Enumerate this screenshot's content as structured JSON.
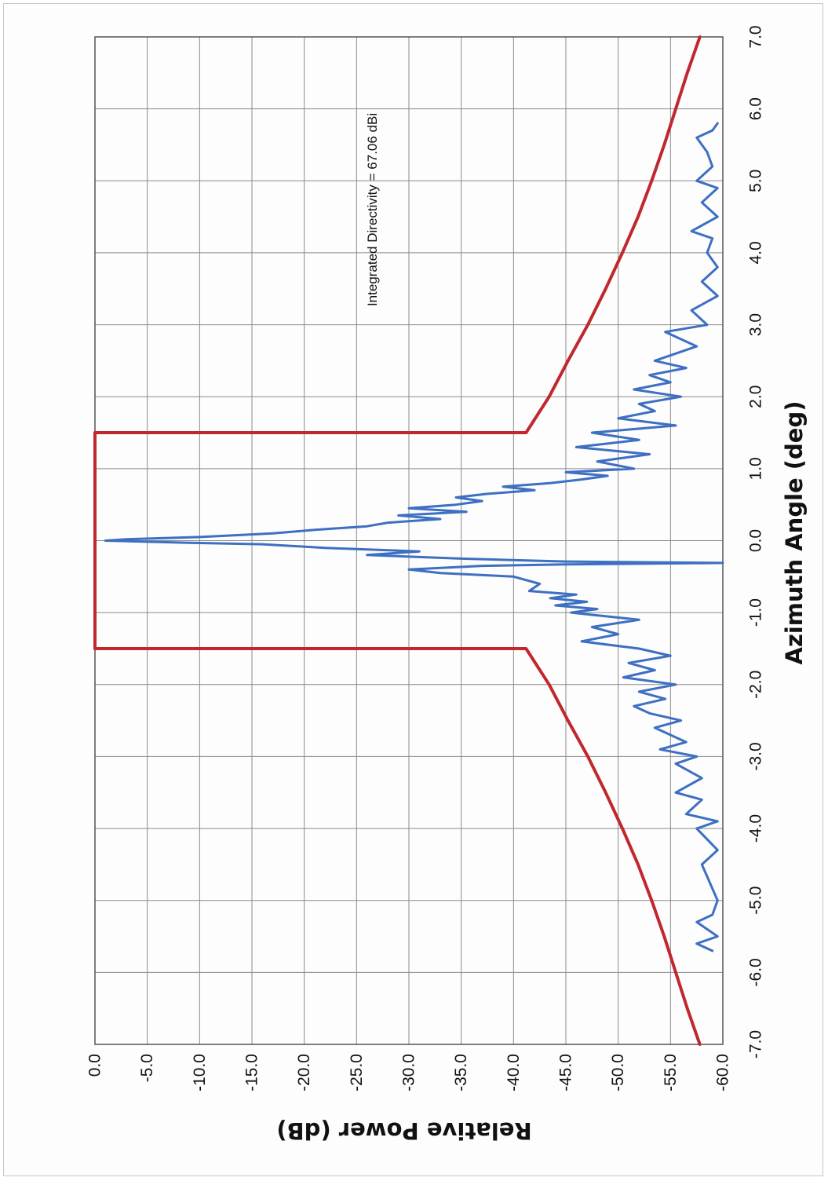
{
  "chart_data": {
    "type": "line",
    "title": "",
    "xlabel": "Azimuth Angle (deg)",
    "ylabel": "Relative Power (dB)",
    "xlim": [
      -7.0,
      7.0
    ],
    "ylim": [
      -60.0,
      0.0
    ],
    "x_ticks": [
      "-7.0",
      "-6.0",
      "-5.0",
      "-4.0",
      "-3.0",
      "-2.0",
      "-1.0",
      "0.0",
      "1.0",
      "2.0",
      "3.0",
      "4.0",
      "5.0",
      "6.0",
      "7.0"
    ],
    "y_ticks": [
      "0.0",
      "-5.0",
      "-10.0",
      "-15.0",
      "-20.0",
      "-25.0",
      "-30.0",
      "-35.0",
      "-40.0",
      "-45.0",
      "-50.0",
      "-55.0",
      "-60.0"
    ],
    "grid": true,
    "orientation": "rotated-90-ccw",
    "annotation": "Integrated Directivity = 67.06 dBi",
    "colors": {
      "mask": "#c0282e",
      "measured": "#3d6fc2",
      "grid": "#8a8a8a"
    },
    "series": [
      {
        "role": "mask",
        "points": [
          [
            -7.0,
            -57.8
          ],
          [
            -6.5,
            -56.6
          ],
          [
            -6.0,
            -55.5
          ],
          [
            -5.5,
            -54.4
          ],
          [
            -5.0,
            -53.2
          ],
          [
            -4.5,
            -51.9
          ],
          [
            -4.0,
            -50.4
          ],
          [
            -3.5,
            -48.8
          ],
          [
            -3.0,
            -47.1
          ],
          [
            -2.5,
            -45.2
          ],
          [
            -2.0,
            -43.4
          ],
          [
            -1.5,
            -41.2
          ],
          [
            -1.5,
            0.0
          ],
          [
            1.5,
            0.0
          ],
          [
            1.5,
            -41.2
          ],
          [
            2.0,
            -43.4
          ],
          [
            2.5,
            -45.2
          ],
          [
            3.0,
            -47.1
          ],
          [
            3.5,
            -48.8
          ],
          [
            4.0,
            -50.4
          ],
          [
            4.5,
            -51.9
          ],
          [
            5.0,
            -53.2
          ],
          [
            5.5,
            -54.4
          ],
          [
            6.0,
            -55.5
          ],
          [
            6.5,
            -56.6
          ],
          [
            7.0,
            -57.8
          ]
        ]
      },
      {
        "role": "measured",
        "points": [
          [
            -5.7,
            -59.0
          ],
          [
            -5.6,
            -57.5
          ],
          [
            -5.5,
            -59.5
          ],
          [
            -5.3,
            -57.5
          ],
          [
            -5.2,
            -59.0
          ],
          [
            -5.0,
            -59.5
          ],
          [
            -4.5,
            -58.0
          ],
          [
            -4.3,
            -59.5
          ],
          [
            -4.0,
            -57.5
          ],
          [
            -3.9,
            -59.5
          ],
          [
            -3.8,
            -56.5
          ],
          [
            -3.6,
            -58.0
          ],
          [
            -3.5,
            -55.5
          ],
          [
            -3.3,
            -58.0
          ],
          [
            -3.1,
            -55.5
          ],
          [
            -3.0,
            -57.5
          ],
          [
            -2.9,
            -54.0
          ],
          [
            -2.8,
            -56.5
          ],
          [
            -2.6,
            -53.5
          ],
          [
            -2.5,
            -56.0
          ],
          [
            -2.4,
            -53.0
          ],
          [
            -2.3,
            -51.5
          ],
          [
            -2.2,
            -54.5
          ],
          [
            -2.1,
            -52.0
          ],
          [
            -2.0,
            -55.5
          ],
          [
            -1.9,
            -50.5
          ],
          [
            -1.8,
            -53.5
          ],
          [
            -1.7,
            -51.0
          ],
          [
            -1.6,
            -55.0
          ],
          [
            -1.5,
            -52.0
          ],
          [
            -1.4,
            -46.5
          ],
          [
            -1.3,
            -50.0
          ],
          [
            -1.2,
            -47.5
          ],
          [
            -1.1,
            -52.0
          ],
          [
            -1.0,
            -45.5
          ],
          [
            -0.95,
            -48.0
          ],
          [
            -0.9,
            -44.0
          ],
          [
            -0.85,
            -47.0
          ],
          [
            -0.8,
            -43.5
          ],
          [
            -0.75,
            -46.0
          ],
          [
            -0.7,
            -41.5
          ],
          [
            -0.6,
            -42.5
          ],
          [
            -0.5,
            -40.0
          ],
          [
            -0.45,
            -33.0
          ],
          [
            -0.4,
            -30.0
          ],
          [
            -0.35,
            -37.0
          ],
          [
            -0.33,
            -45.0
          ],
          [
            -0.31,
            -60.0
          ],
          [
            -0.29,
            -45.0
          ],
          [
            -0.25,
            -35.0
          ],
          [
            -0.2,
            -26.0
          ],
          [
            -0.15,
            -31.0
          ],
          [
            -0.1,
            -22.0
          ],
          [
            -0.05,
            -16.0
          ],
          [
            -0.03,
            -9.0
          ],
          [
            0.0,
            -1.0
          ],
          [
            0.02,
            -3.0
          ],
          [
            0.05,
            -10.0
          ],
          [
            0.08,
            -14.0
          ],
          [
            0.1,
            -17.0
          ],
          [
            0.15,
            -21.0
          ],
          [
            0.2,
            -26.0
          ],
          [
            0.25,
            -28.0
          ],
          [
            0.3,
            -33.0
          ],
          [
            0.35,
            -29.0
          ],
          [
            0.4,
            -35.5
          ],
          [
            0.45,
            -30.0
          ],
          [
            0.5,
            -34.5
          ],
          [
            0.55,
            -37.0
          ],
          [
            0.6,
            -34.5
          ],
          [
            0.65,
            -37.5
          ],
          [
            0.7,
            -42.0
          ],
          [
            0.75,
            -39.0
          ],
          [
            0.8,
            -43.5
          ],
          [
            0.85,
            -46.5
          ],
          [
            0.9,
            -49.0
          ],
          [
            0.95,
            -45.0
          ],
          [
            1.0,
            -51.5
          ],
          [
            1.1,
            -48.0
          ],
          [
            1.2,
            -53.0
          ],
          [
            1.3,
            -46.0
          ],
          [
            1.4,
            -52.0
          ],
          [
            1.5,
            -47.5
          ],
          [
            1.6,
            -55.5
          ],
          [
            1.7,
            -50.0
          ],
          [
            1.8,
            -53.5
          ],
          [
            1.9,
            -52.0
          ],
          [
            2.0,
            -56.0
          ],
          [
            2.1,
            -51.5
          ],
          [
            2.2,
            -55.0
          ],
          [
            2.3,
            -53.0
          ],
          [
            2.4,
            -56.5
          ],
          [
            2.5,
            -53.5
          ],
          [
            2.7,
            -57.5
          ],
          [
            2.9,
            -54.5
          ],
          [
            3.0,
            -58.5
          ],
          [
            3.2,
            -57.0
          ],
          [
            3.4,
            -59.5
          ],
          [
            3.6,
            -58.0
          ],
          [
            3.8,
            -59.5
          ],
          [
            4.0,
            -58.5
          ],
          [
            4.2,
            -59.0
          ],
          [
            4.3,
            -57.0
          ],
          [
            4.5,
            -59.5
          ],
          [
            4.7,
            -58.0
          ],
          [
            4.9,
            -59.5
          ],
          [
            5.0,
            -57.5
          ],
          [
            5.2,
            -59.0
          ],
          [
            5.4,
            -58.5
          ],
          [
            5.6,
            -57.5
          ],
          [
            5.7,
            -59.0
          ],
          [
            5.8,
            -59.5
          ]
        ]
      }
    ]
  }
}
